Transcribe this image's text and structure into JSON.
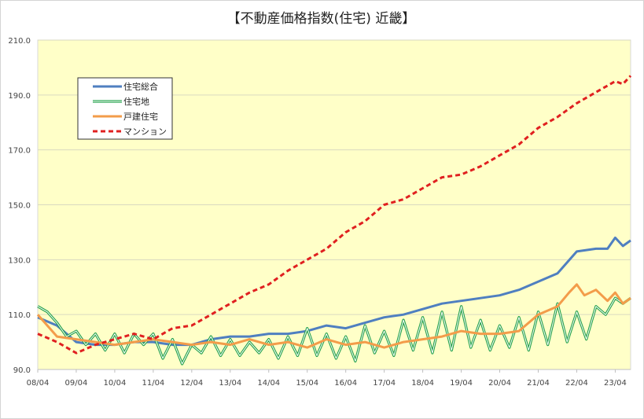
{
  "chart_data": {
    "type": "line",
    "title": "【不動産価格指数(住宅) 近畿】",
    "xlabel": "",
    "ylabel": "",
    "ylim": [
      90,
      210
    ],
    "yticks": [
      "90.0",
      "110.0",
      "130.0",
      "150.0",
      "170.0",
      "190.0",
      "210.0"
    ],
    "x_tick_labels": [
      "08/04",
      "09/04",
      "10/04",
      "11/04",
      "12/04",
      "13/04",
      "14/04",
      "15/04",
      "16/04",
      "17/04",
      "18/04",
      "19/04",
      "20/04",
      "21/04",
      "22/04",
      "23/04"
    ],
    "x_range": [
      0,
      15.4
    ],
    "legend_position": "top-left",
    "series": [
      {
        "name": "住宅総合",
        "color": "#4f7fc0",
        "style": "solid",
        "x": [
          0,
          0.5,
          1,
          1.5,
          2,
          2.5,
          3,
          3.5,
          4,
          4.5,
          5,
          5.5,
          6,
          6.5,
          7,
          7.5,
          8,
          8.5,
          9,
          9.5,
          10,
          10.5,
          11,
          11.5,
          12,
          12.5,
          13,
          13.5,
          14,
          14.5,
          14.8,
          15,
          15.2,
          15.4
        ],
        "values": [
          109,
          106,
          100,
          99,
          99,
          100,
          100,
          99,
          99,
          101,
          102,
          102,
          103,
          103,
          104,
          106,
          105,
          107,
          109,
          110,
          112,
          114,
          115,
          116,
          117,
          119,
          122,
          125,
          133,
          134,
          134,
          138,
          135,
          137
        ]
      },
      {
        "name": "住宅地",
        "color": "#22a04a",
        "style": "double",
        "x": [
          0,
          0.25,
          0.5,
          0.75,
          1,
          1.25,
          1.5,
          1.75,
          2,
          2.25,
          2.5,
          2.75,
          3,
          3.25,
          3.5,
          3.75,
          4,
          4.25,
          4.5,
          4.75,
          5,
          5.25,
          5.5,
          5.75,
          6,
          6.25,
          6.5,
          6.75,
          7,
          7.25,
          7.5,
          7.75,
          8,
          8.25,
          8.5,
          8.75,
          9,
          9.25,
          9.5,
          9.75,
          10,
          10.25,
          10.5,
          10.75,
          11,
          11.25,
          11.5,
          11.75,
          12,
          12.25,
          12.5,
          12.75,
          13,
          13.25,
          13.5,
          13.75,
          14,
          14.25,
          14.5,
          14.75,
          15,
          15.2,
          15.4
        ],
        "values": [
          113,
          111,
          107,
          102,
          104,
          99,
          103,
          97,
          103,
          96,
          103,
          99,
          103,
          94,
          101,
          92,
          99,
          96,
          102,
          95,
          101,
          95,
          100,
          96,
          101,
          94,
          102,
          95,
          105,
          95,
          103,
          94,
          102,
          93,
          106,
          96,
          104,
          95,
          108,
          97,
          109,
          96,
          111,
          97,
          113,
          98,
          108,
          97,
          106,
          98,
          109,
          97,
          111,
          99,
          114,
          100,
          111,
          101,
          113,
          110,
          116,
          114,
          116
        ]
      },
      {
        "name": "戸建住宅",
        "color": "#f39c4a",
        "style": "solid",
        "x": [
          0,
          0.5,
          1,
          1.5,
          2,
          2.5,
          3,
          3.5,
          4,
          4.5,
          5,
          5.5,
          6,
          6.5,
          7,
          7.5,
          8,
          8.5,
          9,
          9.5,
          10,
          10.5,
          11,
          11.5,
          12,
          12.5,
          13,
          13.5,
          13.8,
          14,
          14.2,
          14.5,
          14.8,
          15,
          15.2,
          15.4
        ],
        "values": [
          110,
          102,
          101,
          100,
          99,
          100,
          101,
          100,
          99,
          100,
          99,
          101,
          99,
          100,
          98,
          101,
          99,
          100,
          98,
          100,
          101,
          102,
          104,
          103,
          103,
          104,
          110,
          113,
          118,
          121,
          117,
          119,
          115,
          118,
          114,
          116
        ]
      },
      {
        "name": "マンション",
        "color": "#e02020",
        "style": "dashed",
        "x": [
          0,
          0.5,
          1,
          1.5,
          2,
          2.5,
          3,
          3.5,
          4,
          4.5,
          5,
          5.5,
          6,
          6.5,
          7,
          7.5,
          8,
          8.5,
          9,
          9.5,
          10,
          10.5,
          11,
          11.5,
          12,
          12.5,
          13,
          13.5,
          14,
          14.5,
          15,
          15.2,
          15.4
        ],
        "values": [
          103,
          100,
          96,
          99,
          101,
          103,
          101,
          105,
          106,
          110,
          114,
          118,
          121,
          126,
          130,
          134,
          140,
          144,
          150,
          152,
          156,
          160,
          161,
          164,
          168,
          172,
          178,
          182,
          187,
          191,
          195,
          194,
          197
        ]
      }
    ]
  }
}
